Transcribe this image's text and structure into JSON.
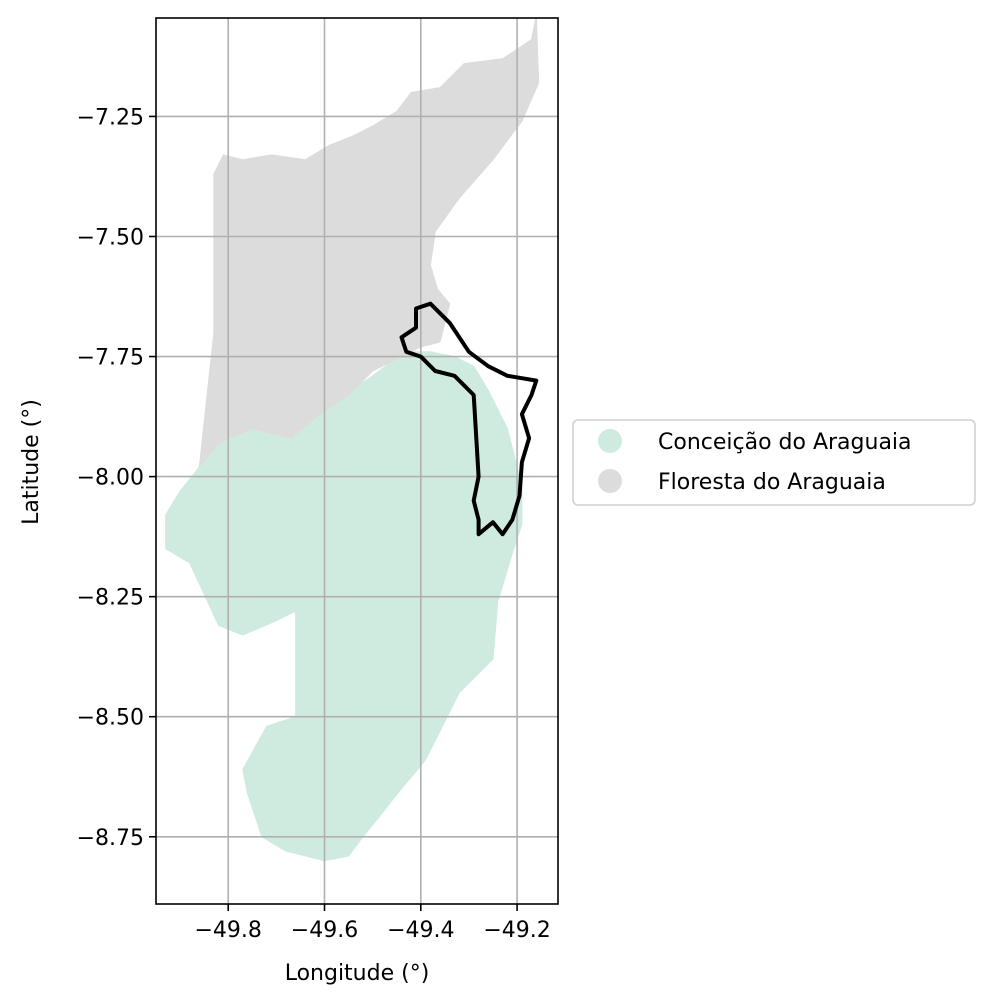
{
  "chart_data": {
    "type": "map",
    "xlabel": "Longitude (°)",
    "ylabel": "Latitude (°)",
    "xlim": [
      -49.95,
      -49.115
    ],
    "ylim": [
      -8.89,
      -7.045
    ],
    "x_ticks": [
      -49.8,
      -49.6,
      -49.4,
      -49.2
    ],
    "x_tick_labels": [
      "−49.8",
      "−49.6",
      "−49.4",
      "−49.2"
    ],
    "y_ticks": [
      -7.25,
      -7.5,
      -7.75,
      -8.0,
      -8.25,
      -8.5,
      -8.75
    ],
    "y_tick_labels": [
      "−7.25",
      "−7.50",
      "−7.75",
      "−8.00",
      "−8.25",
      "−8.50",
      "−8.75"
    ],
    "grid": true,
    "legend_position": "right",
    "colors": {
      "conceicao": "#cfebdf",
      "floresta": "#dcdcdc",
      "outline": "#000000",
      "grid": "#b0b0b0"
    },
    "regions": [
      {
        "name": "Conceição do Araguaia",
        "color": "#cfebdf",
        "coords": [
          [
            -49.86,
            -7.98
          ],
          [
            -49.82,
            -7.93
          ],
          [
            -49.75,
            -7.9
          ],
          [
            -49.67,
            -7.92
          ],
          [
            -49.61,
            -7.87
          ],
          [
            -49.56,
            -7.83
          ],
          [
            -49.53,
            -7.81
          ],
          [
            -49.5,
            -7.79
          ],
          [
            -49.46,
            -7.76
          ],
          [
            -49.42,
            -7.74
          ],
          [
            -49.38,
            -7.74
          ],
          [
            -49.33,
            -7.75
          ],
          [
            -49.29,
            -7.77
          ],
          [
            -49.26,
            -7.82
          ],
          [
            -49.22,
            -7.9
          ],
          [
            -49.19,
            -8.02
          ],
          [
            -49.19,
            -8.1
          ],
          [
            -49.21,
            -8.16
          ],
          [
            -49.24,
            -8.26
          ],
          [
            -49.25,
            -8.38
          ],
          [
            -49.32,
            -8.45
          ],
          [
            -49.36,
            -8.53
          ],
          [
            -49.39,
            -8.59
          ],
          [
            -49.44,
            -8.65
          ],
          [
            -49.48,
            -8.7
          ],
          [
            -49.52,
            -8.75
          ],
          [
            -49.55,
            -8.79
          ],
          [
            -49.6,
            -8.8
          ],
          [
            -49.68,
            -8.78
          ],
          [
            -49.73,
            -8.75
          ],
          [
            -49.76,
            -8.66
          ],
          [
            -49.77,
            -8.61
          ],
          [
            -49.72,
            -8.52
          ],
          [
            -49.66,
            -8.5
          ],
          [
            -49.66,
            -8.28
          ],
          [
            -49.7,
            -8.3
          ],
          [
            -49.77,
            -8.33
          ],
          [
            -49.82,
            -8.31
          ],
          [
            -49.88,
            -8.18
          ],
          [
            -49.93,
            -8.15
          ],
          [
            -49.93,
            -8.08
          ],
          [
            -49.9,
            -8.03
          ]
        ]
      },
      {
        "name": "Floresta do Araguaia",
        "color": "#dcdcdc",
        "coords": [
          [
            -49.83,
            -7.37
          ],
          [
            -49.81,
            -7.33
          ],
          [
            -49.77,
            -7.34
          ],
          [
            -49.71,
            -7.33
          ],
          [
            -49.64,
            -7.34
          ],
          [
            -49.59,
            -7.31
          ],
          [
            -49.54,
            -7.29
          ],
          [
            -49.5,
            -7.27
          ],
          [
            -49.45,
            -7.24
          ],
          [
            -49.42,
            -7.2
          ],
          [
            -49.36,
            -7.19
          ],
          [
            -49.31,
            -7.14
          ],
          [
            -49.23,
            -7.13
          ],
          [
            -49.17,
            -7.09
          ],
          [
            -49.16,
            -7.04
          ],
          [
            -49.155,
            -7.18
          ],
          [
            -49.19,
            -7.26
          ],
          [
            -49.25,
            -7.34
          ],
          [
            -49.32,
            -7.42
          ],
          [
            -49.37,
            -7.49
          ],
          [
            -49.38,
            -7.56
          ],
          [
            -49.365,
            -7.61
          ],
          [
            -49.34,
            -7.64
          ],
          [
            -49.36,
            -7.72
          ],
          [
            -49.4,
            -7.73
          ],
          [
            -49.44,
            -7.75
          ],
          [
            -49.5,
            -7.78
          ],
          [
            -49.55,
            -7.83
          ],
          [
            -49.61,
            -7.87
          ],
          [
            -49.67,
            -7.92
          ],
          [
            -49.75,
            -7.9
          ],
          [
            -49.82,
            -7.93
          ],
          [
            -49.86,
            -7.98
          ],
          [
            -49.83,
            -7.7
          ]
        ]
      }
    ],
    "highlight_outline": {
      "coords": [
        [
          -49.41,
          -7.65
        ],
        [
          -49.38,
          -7.64
        ],
        [
          -49.34,
          -7.68
        ],
        [
          -49.3,
          -7.74
        ],
        [
          -49.26,
          -7.77
        ],
        [
          -49.22,
          -7.79
        ],
        [
          -49.16,
          -7.8
        ],
        [
          -49.17,
          -7.83
        ],
        [
          -49.19,
          -7.87
        ],
        [
          -49.175,
          -7.92
        ],
        [
          -49.19,
          -7.97
        ],
        [
          -49.195,
          -8.04
        ],
        [
          -49.21,
          -8.09
        ],
        [
          -49.23,
          -8.12
        ],
        [
          -49.25,
          -8.095
        ],
        [
          -49.28,
          -8.12
        ],
        [
          -49.28,
          -8.09
        ],
        [
          -49.29,
          -8.05
        ],
        [
          -49.28,
          -8.0
        ],
        [
          -49.29,
          -7.83
        ],
        [
          -49.33,
          -7.79
        ],
        [
          -49.37,
          -7.78
        ],
        [
          -49.4,
          -7.75
        ],
        [
          -49.43,
          -7.74
        ],
        [
          -49.44,
          -7.71
        ],
        [
          -49.41,
          -7.69
        ]
      ]
    },
    "legend": [
      {
        "label": "Conceição do Araguaia",
        "color": "#cfebdf"
      },
      {
        "label": "Floresta do Araguaia",
        "color": "#dcdcdc"
      }
    ]
  }
}
